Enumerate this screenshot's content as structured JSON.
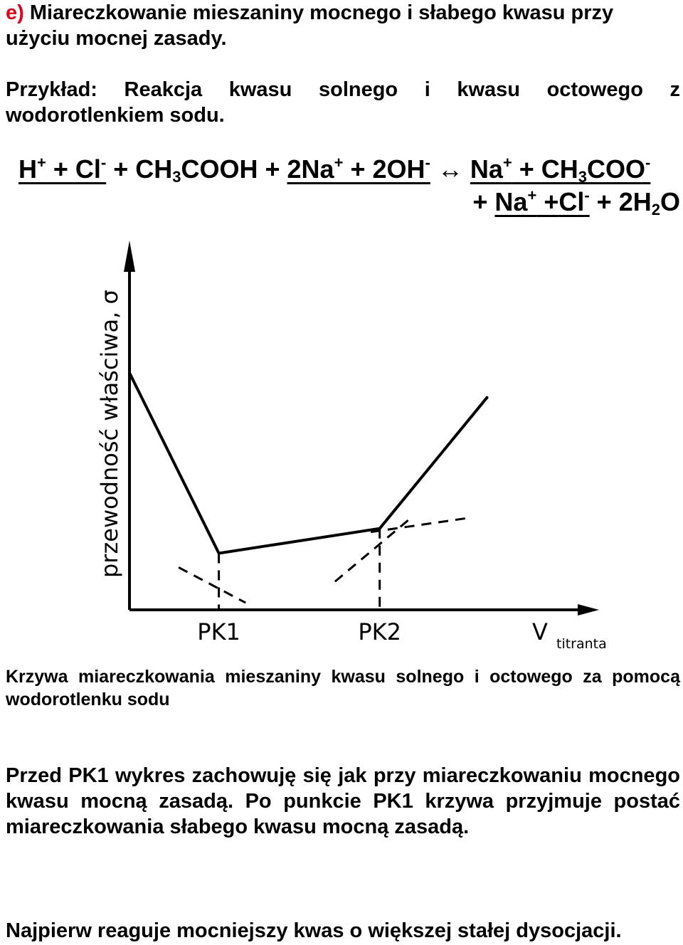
{
  "heading": {
    "marker": "e)",
    "text": " Miareczkowanie mieszaniny mocnego i słabego kwasu przy użyciu mocnej zasady."
  },
  "example": "Przykład: Reakcja kwasu solnego i kwasu octowego z wodorotlenkiem sodu.",
  "equation": {
    "h": "H",
    "h_sup": "+",
    "plus1": " + ",
    "cl": "Cl",
    "cl_sup": "-",
    "plus2": " + ",
    "ch3cooh_a": "CH",
    "ch3cooh_sub": "3",
    "ch3cooh_b": "COOH",
    "plus3": " + ",
    "na2": "2Na",
    "na2_sup": "+",
    "plus4": " + ",
    "oh2": "2OH",
    "oh2_sup": "-",
    "arrow": " ↔ ",
    "na": "Na",
    "na_sup": "+",
    "plus5": " + ",
    "ch3coo_a": "CH",
    "ch3coo_sub": "3",
    "ch3coo_b": "COO",
    "ch3coo_sup": "-",
    "plus6": "+ ",
    "na_b": "Na",
    "na_b_sup": "+",
    "plus7": " +",
    "cl_b": "Cl",
    "cl_b_sup": "-",
    "plus8": " + ",
    "h2o_a": "2H",
    "h2o_sub": "2",
    "h2o_b": "O"
  },
  "chart_data": {
    "type": "line",
    "title": "",
    "ylabel": "przewodność właściwa, σ",
    "xlabel": "V",
    "xlabel_sub": "titranta",
    "xlim": [
      0,
      10
    ],
    "ylim": [
      0,
      10
    ],
    "grid": false,
    "series": [
      {
        "x": [
          0,
          2.0,
          5.6,
          8.0
        ],
        "y": [
          6.7,
          1.6,
          2.3,
          6.0
        ]
      }
    ],
    "tangents": [
      {
        "x": [
          1.1,
          2.6
        ],
        "y": [
          1.2,
          0.2
        ]
      },
      {
        "x": [
          4.6,
          6.3
        ],
        "y": [
          0.8,
          2.6
        ]
      },
      {
        "x": [
          5.4,
          7.6
        ],
        "y": [
          2.2,
          2.6
        ]
      }
    ],
    "equivalence_points": [
      {
        "label": "PK1",
        "x": 2.0,
        "y": 1.6
      },
      {
        "label": "PK2",
        "x": 5.6,
        "y": 2.3
      }
    ]
  },
  "caption": "Krzywa miareczkowania mieszaniny kwasu solnego i octowego za pomocą wodorotlenku sodu",
  "paragraph": "Przed PK1 wykres zachowuję się jak przy miareczkowaniu mocnego kwasu mocną zasadą. Po punkcie PK1 krzywa przyjmuje postać miareczkowania słabego kwasu mocną zasadą.",
  "final_line": "Najpierw reaguje mocniejszy kwas o większej stałej dysocjacji."
}
